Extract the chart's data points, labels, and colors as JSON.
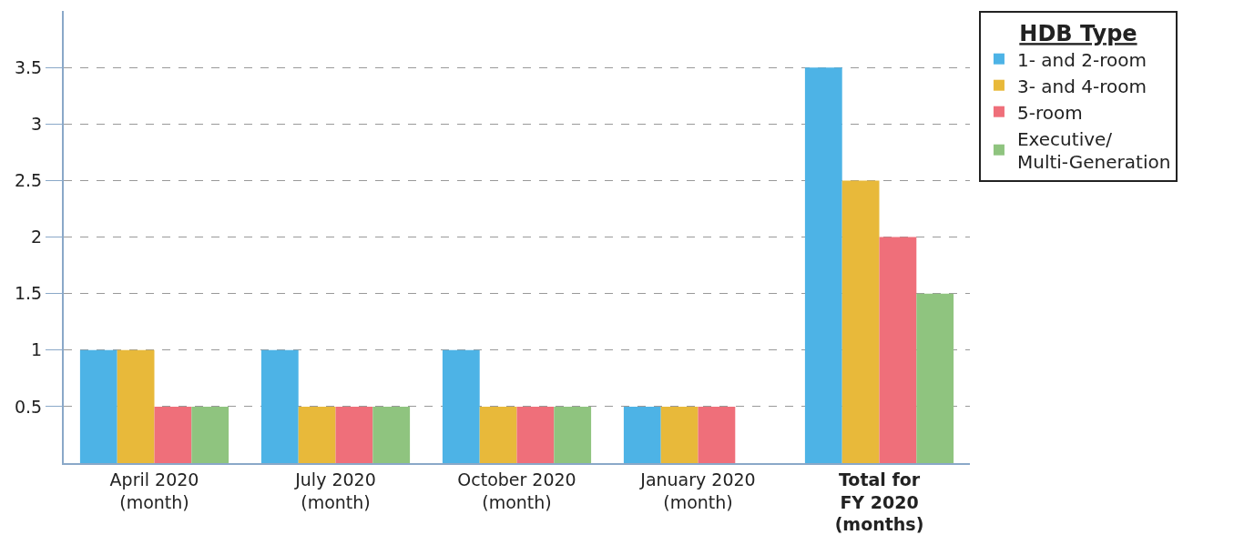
{
  "chart_data": {
    "type": "bar",
    "categories": [
      "April 2020\n(month)",
      "July 2020\n(month)",
      "October 2020\n(month)",
      "January 2020\n(month)",
      "Total for\nFY 2020\n(months)"
    ],
    "series": [
      {
        "name": "1- and 2-room",
        "color": "#4db3e6",
        "values": [
          1,
          1,
          1,
          0.5,
          3.5
        ]
      },
      {
        "name": "3- and 4-room",
        "color": "#e8b93a",
        "values": [
          1,
          0.5,
          0.5,
          0.5,
          2.5
        ]
      },
      {
        "name": "5-room",
        "color": "#ef6f7a",
        "values": [
          0.5,
          0.5,
          0.5,
          0.5,
          2
        ]
      },
      {
        "name": "Executive/\nMulti-Generation",
        "color": "#8fc47f",
        "values": [
          0.5,
          0.5,
          0.5,
          null,
          1.5
        ]
      }
    ],
    "legend_title": "HDB Type",
    "ylim": [
      0,
      4.0
    ],
    "yticks": [
      0.5,
      1,
      1.5,
      2,
      2.5,
      3,
      3.5
    ],
    "grid": "y",
    "legend": "top right"
  }
}
